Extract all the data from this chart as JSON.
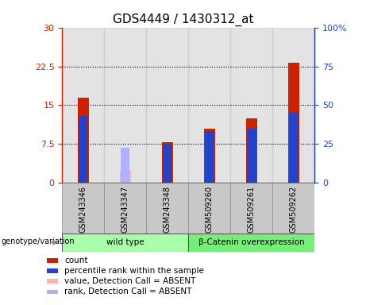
{
  "title": "GDS4449 / 1430312_at",
  "samples": [
    "GSM243346",
    "GSM243347",
    "GSM243348",
    "GSM509260",
    "GSM509261",
    "GSM509262"
  ],
  "count_values": [
    16.5,
    null,
    7.8,
    10.5,
    12.5,
    23.2
  ],
  "rank_values": [
    13.0,
    null,
    7.5,
    10.0,
    10.5,
    13.5
  ],
  "absent_value": [
    null,
    2.5,
    null,
    null,
    null,
    null
  ],
  "absent_rank": [
    null,
    6.8,
    null,
    null,
    null,
    null
  ],
  "ylim_left": [
    0,
    30
  ],
  "ylim_right": [
    0,
    100
  ],
  "yticks_left": [
    0,
    7.5,
    15,
    22.5,
    30
  ],
  "yticks_right": [
    0,
    25,
    50,
    75,
    100
  ],
  "ytick_labels_left": [
    "0",
    "7.5",
    "15",
    "22.5",
    "30"
  ],
  "ytick_labels_right": [
    "0",
    "25",
    "50",
    "75",
    "100%"
  ],
  "color_count": "#cc2200",
  "color_rank": "#2244cc",
  "color_absent_value": "#ffb0b0",
  "color_absent_rank": "#b0b0ff",
  "color_sample_bg": "#c8c8c8",
  "groups": [
    {
      "label": "wild type",
      "start": 0,
      "end": 3,
      "color": "#aaffaa"
    },
    {
      "label": "β-Catenin overexpression",
      "start": 3,
      "end": 6,
      "color": "#77ee77"
    }
  ],
  "count_bar_width": 0.25,
  "rank_bar_width": 0.07,
  "legend_items": [
    {
      "color": "#cc2200",
      "label": "count"
    },
    {
      "color": "#2244cc",
      "label": "percentile rank within the sample"
    },
    {
      "color": "#ffb0b0",
      "label": "value, Detection Call = ABSENT"
    },
    {
      "color": "#b0b0ff",
      "label": "rank, Detection Call = ABSENT"
    }
  ],
  "genotype_label": "genotype/variation"
}
